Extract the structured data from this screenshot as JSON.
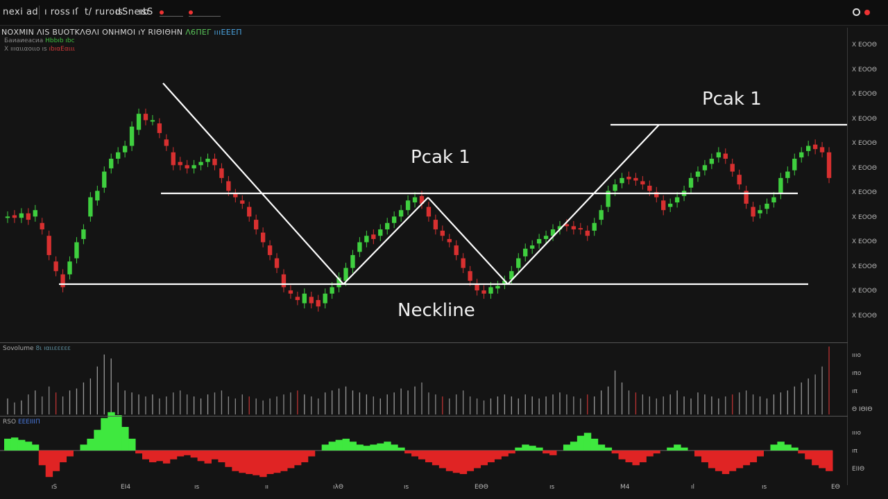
{
  "toolbar": {
    "items": [
      "nexi ad",
      "ı ross",
      "ıſ",
      "t/ rurod",
      "ıs",
      "Sneıb",
      "ıs",
      "S"
    ],
    "right_icon": "settings-gear-icon"
  },
  "chart_title": {
    "main": "ΝΟΧΜΙΝ ΛΙS BUΟΤΚΛΘΛΙ ΟΝΗΜΟΙ ıΥ RΙΘΙΘΗΝ",
    "green_part": "Λ6ΠΕΓ",
    "blue_part": "ıııΕΕΕΠ"
  },
  "legend": {
    "line1_prefix": "Баиаиеасиа",
    "line1_green": "Ηbbıb ıbc",
    "line2_prefix": "Χ ıııαιιαοιιο ıs",
    "line2_red": "ıbıαΕαιιι"
  },
  "price_axis": [
    "Χ ΕΟΟΘ",
    "Χ ΕΟΟΘ",
    "Χ ΕΟΟΘ",
    "Χ ΕΟΟΘ",
    "Χ ΕΟΟΘ",
    "Χ ΕΟΟΘ",
    "Χ ΕΟΟΘ",
    "Χ ΕΟΟΘ",
    "Χ ΕΟΟΘ",
    "Χ ΕΟΟΘ",
    "Χ ΕΟΟΘ",
    "Χ ΕΟΟΘ"
  ],
  "annotations": {
    "peak_center": "Pcak 1",
    "peak_right": "Pcak 1",
    "neckline": "Neckline"
  },
  "volume_panel": {
    "title_prefix": "Sovolume",
    "title_value": "8ι ıαιιεεεεε",
    "axis": [
      "ıııο",
      "ıπο",
      "ıπ",
      "Ε"
    ],
    "axis_bottom": "Θ ΙΘΙΘ"
  },
  "osc_panel": {
    "title_prefix": "RSO",
    "title_value": "ΕΕΕΙΙΙΠ",
    "axis": [
      "ıııο",
      "ıπ",
      "ΕΙΙΘ"
    ]
  },
  "time_axis": [
    "ıS",
    "ΕΙ4",
    "ıs",
    "ıı",
    "ıλΘ",
    "ıs",
    "ΕΘΘ",
    "ıs",
    "Μ4",
    "ıl",
    "ıs",
    "ΕΘ"
  ],
  "colors": {
    "background": "#141414",
    "bull": "#3fcf3f",
    "bear": "#d83030",
    "pattern_lines": "#ffffff"
  },
  "chart_data": {
    "type": "candlestick",
    "x": [
      1,
      2,
      3,
      4,
      5,
      6,
      7,
      8,
      9,
      10,
      11,
      12,
      13,
      14,
      15,
      16,
      17,
      18,
      19,
      20,
      21,
      22,
      23,
      24,
      25,
      26,
      27,
      28,
      29,
      30,
      31,
      32,
      33,
      34,
      35,
      36,
      37,
      38,
      39,
      40,
      41,
      42,
      43,
      44,
      45,
      46,
      47,
      48,
      49,
      50,
      51,
      52,
      53,
      54,
      55,
      56,
      57,
      58,
      59,
      60,
      61,
      62,
      63,
      64,
      65,
      66,
      67,
      68,
      69,
      70,
      71,
      72,
      73,
      74,
      75,
      76,
      77,
      78,
      79,
      80,
      81,
      82,
      83,
      84,
      85,
      86,
      87,
      88,
      89,
      90,
      91,
      92,
      93,
      94,
      95,
      96,
      97,
      98,
      99,
      100,
      101,
      102,
      103,
      104,
      105,
      106,
      107,
      108,
      109,
      110,
      111,
      112,
      113,
      114,
      115,
      116,
      117,
      118,
      119,
      120
    ],
    "close": [
      320,
      318,
      325,
      315,
      330,
      300,
      260,
      235,
      210,
      250,
      280,
      300,
      350,
      360,
      390,
      410,
      420,
      430,
      460,
      480,
      470,
      470,
      450,
      430,
      400,
      400,
      395,
      400,
      405,
      410,
      400,
      380,
      360,
      350,
      340,
      320,
      300,
      280,
      260,
      240,
      210,
      200,
      190,
      200,
      185,
      180,
      200,
      210,
      225,
      240,
      260,
      280,
      290,
      285,
      300,
      310,
      320,
      330,
      345,
      350,
      340,
      320,
      300,
      290,
      280,
      260,
      240,
      220,
      205,
      200,
      210,
      212,
      220,
      235,
      255,
      270,
      275,
      285,
      290,
      300,
      305,
      305,
      300,
      300,
      290,
      310,
      330,
      360,
      370,
      380,
      378,
      376,
      370,
      360,
      350,
      330,
      340,
      350,
      360,
      380,
      390,
      400,
      410,
      420,
      410,
      390,
      370,
      340,
      320,
      330,
      340,
      350,
      380,
      390,
      410,
      420,
      430,
      425,
      420,
      380
    ],
    "open": [
      318,
      322,
      318,
      325,
      320,
      310,
      290,
      250,
      230,
      230,
      255,
      285,
      320,
      345,
      365,
      395,
      410,
      420,
      430,
      455,
      480,
      470,
      465,
      440,
      420,
      405,
      400,
      395,
      400,
      405,
      410,
      395,
      375,
      355,
      345,
      335,
      315,
      295,
      275,
      255,
      230,
      205,
      195,
      185,
      195,
      190,
      185,
      200,
      210,
      220,
      240,
      265,
      280,
      292,
      290,
      300,
      310,
      320,
      330,
      342,
      352,
      335,
      315,
      298,
      285,
      275,
      255,
      235,
      215,
      205,
      200,
      208,
      215,
      222,
      240,
      258,
      270,
      278,
      285,
      290,
      300,
      308,
      305,
      302,
      298,
      298,
      315,
      335,
      360,
      372,
      382,
      380,
      375,
      368,
      358,
      345,
      335,
      342,
      352,
      365,
      382,
      392,
      402,
      412,
      418,
      402,
      385,
      360,
      335,
      325,
      332,
      342,
      355,
      380,
      392,
      412,
      422,
      432,
      428,
      420
    ],
    "ylim": [
      150,
      560
    ],
    "volume": [
      40,
      30,
      35,
      50,
      60,
      45,
      70,
      55,
      45,
      60,
      65,
      80,
      90,
      120,
      150,
      140,
      80,
      60,
      55,
      50,
      45,
      50,
      40,
      45,
      55,
      60,
      50,
      45,
      40,
      50,
      55,
      60,
      45,
      40,
      50,
      45,
      40,
      35,
      40,
      45,
      50,
      55,
      60,
      50,
      45,
      40,
      55,
      60,
      65,
      70,
      60,
      55,
      50,
      45,
      40,
      50,
      55,
      65,
      60,
      70,
      80,
      55,
      50,
      45,
      40,
      50,
      60,
      45,
      40,
      35,
      40,
      45,
      50,
      45,
      40,
      50,
      45,
      40,
      45,
      50,
      55,
      50,
      45,
      40,
      50,
      45,
      60,
      70,
      110,
      80,
      60,
      55,
      50,
      45,
      40,
      45,
      50,
      60,
      45,
      40,
      55,
      50,
      45,
      40,
      45,
      50,
      55,
      60,
      50,
      45,
      40,
      50,
      55,
      60,
      70,
      80,
      90,
      100,
      120,
      170
    ],
    "oscillator": [
      20,
      22,
      18,
      15,
      10,
      -25,
      -45,
      -35,
      -20,
      -10,
      0,
      10,
      20,
      35,
      55,
      65,
      60,
      40,
      20,
      -5,
      -15,
      -20,
      -18,
      -22,
      -15,
      -10,
      -8,
      -12,
      -18,
      -22,
      -15,
      -20,
      -28,
      -35,
      -38,
      -40,
      -42,
      -45,
      -40,
      -38,
      -35,
      -30,
      -25,
      -20,
      -10,
      0,
      10,
      15,
      18,
      20,
      15,
      10,
      8,
      10,
      12,
      15,
      10,
      5,
      -5,
      -10,
      -15,
      -20,
      -25,
      -30,
      -35,
      -38,
      -40,
      -35,
      -30,
      -25,
      -20,
      -15,
      -10,
      -5,
      5,
      10,
      8,
      5,
      -5,
      -8,
      0,
      10,
      15,
      25,
      30,
      20,
      10,
      5,
      -5,
      -15,
      -20,
      -25,
      -20,
      -10,
      -5,
      0,
      5,
      10,
      5,
      0,
      -10,
      -20,
      -30,
      -35,
      -40,
      -35,
      -30,
      -25,
      -20,
      -10,
      0,
      10,
      15,
      10,
      5,
      -5,
      -15,
      -25,
      -30,
      -35
    ]
  }
}
